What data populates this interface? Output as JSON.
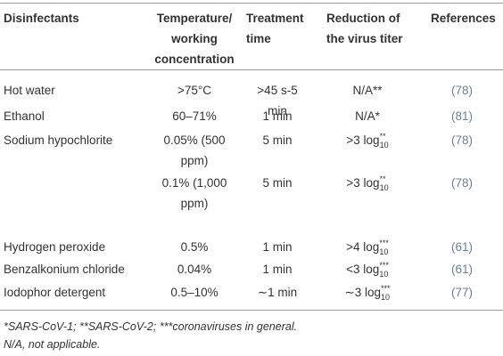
{
  "table": {
    "header": [
      "Disinfectants",
      "Temperature/ working concentration",
      "Treatment time",
      "Reduction of the virus titer",
      "References"
    ],
    "rows": [
      [
        "Hot water",
        ">75°C",
        ">45 s-5 min",
        "N/A**",
        "(78)"
      ],
      [
        "Ethanol",
        "60–71%",
        "1 min",
        "N/A*",
        "(81)"
      ],
      [
        "Sodium hypochlorite",
        "0.05% (500 ppm)",
        "5 min",
        {
          "text": ">3 log",
          "sub": "10",
          "sup": "**"
        },
        "(78)"
      ],
      [
        null,
        "0.1% (1,000 ppm)",
        "5 min",
        {
          "text": ">3 log",
          "sub": "10",
          "sup": "**"
        },
        "(78)"
      ],
      [
        "Hydrogen peroxide",
        "0.5%",
        "1 min",
        {
          "text": ">4 log",
          "sub": "10",
          "sup": "***"
        },
        "(61)"
      ],
      [
        "Benzalkonium chloride",
        "0.04%",
        "1 min",
        {
          "text": "<3 log",
          "sub": "10",
          "sup": "***"
        },
        "(61)"
      ],
      [
        "Iodophor detergent",
        "0.5–10%",
        "∼1 min",
        {
          "text": "∼3 log",
          "sub": "10",
          "sup": "***"
        },
        "(77)"
      ]
    ],
    "footnotes": [
      "*SARS-CoV-1; **SARS-CoV-2; ***coronaviruses in general.",
      "N/A, not applicable."
    ]
  }
}
